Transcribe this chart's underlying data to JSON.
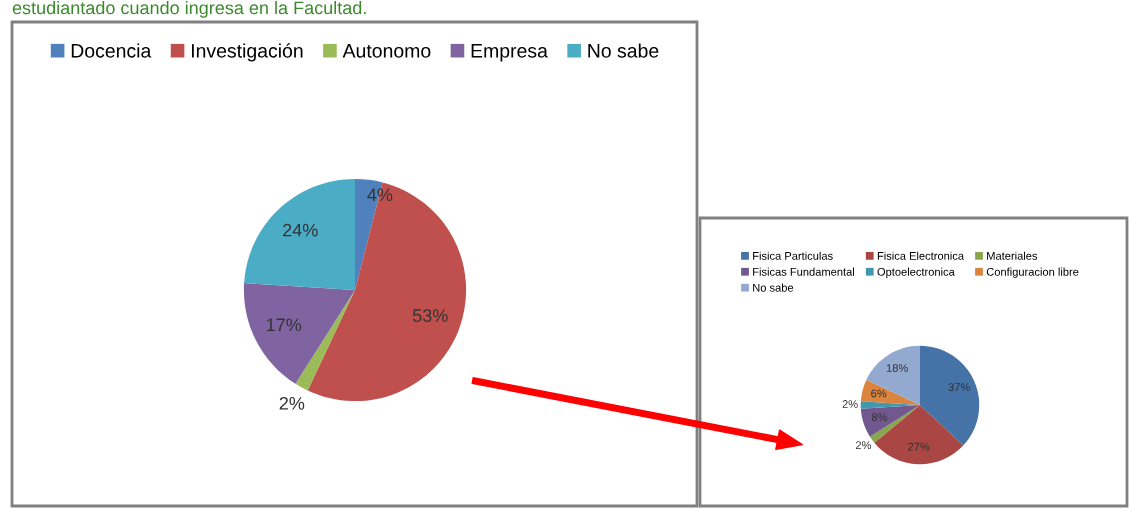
{
  "chart_data": [
    {
      "type": "pie",
      "annotations": [
        "estudiantado cuando ingresa en la Facultad."
      ],
      "categories": [
        "Docencia",
        "Investigación",
        "Autonomo",
        "Empresa",
        "No sabe"
      ],
      "values": [
        4,
        53,
        2,
        17,
        24
      ],
      "colors": [
        "#4f81bd",
        "#c0504d",
        "#9bbb59",
        "#8064a2",
        "#4bacc6"
      ],
      "value_labels": [
        "4%",
        "53%",
        "2%",
        "17%",
        "24%"
      ],
      "legend": "top"
    },
    {
      "type": "pie",
      "categories": [
        "Fisica Particulas",
        "Fisica Electronica",
        "Materiales",
        "Fisicas Fundamental",
        "Optoelectronica",
        "Configuracion libre",
        "No sabe"
      ],
      "values": [
        37,
        27,
        2,
        8,
        2,
        6,
        18
      ],
      "colors": [
        "#4572a7",
        "#aa4643",
        "#89a54e",
        "#71588f",
        "#4198af",
        "#db843d",
        "#93a9cf"
      ],
      "value_labels": [
        "37%",
        "27%",
        "2%",
        "8%",
        "2%",
        "6%",
        "18%"
      ],
      "legend": "top"
    }
  ]
}
